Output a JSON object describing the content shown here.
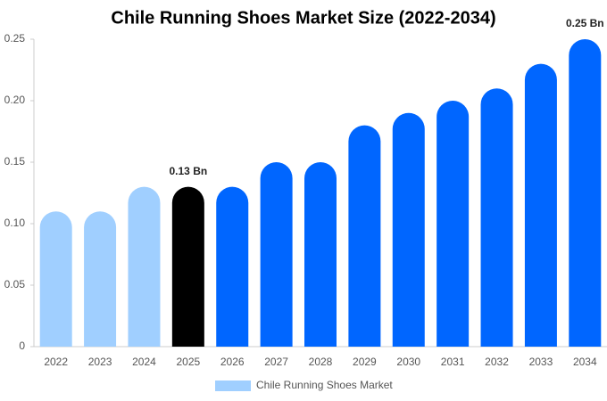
{
  "chart_data": {
    "type": "bar",
    "title": "Chile Running Shoes Market Size (2022-2034)",
    "categories": [
      "2022",
      "2023",
      "2024",
      "2025",
      "2026",
      "2027",
      "2028",
      "2029",
      "2030",
      "2031",
      "2032",
      "2033",
      "2034"
    ],
    "series": [
      {
        "name": "Chile Running Shoes Market",
        "color": "#a0cfff",
        "values": [
          0.11,
          0.11,
          0.13,
          0.13,
          0.13,
          0.15,
          0.15,
          0.18,
          0.19,
          0.2,
          0.21,
          0.23,
          0.25
        ],
        "value_labels": [
          null,
          null,
          null,
          "0.13 Bn",
          null,
          null,
          null,
          null,
          null,
          null,
          null,
          null,
          "0.25 Bn"
        ],
        "bar_colors": [
          "#a0cfff",
          "#a0cfff",
          "#a0cfff",
          "#000000",
          "#0066ff",
          "#0066ff",
          "#0066ff",
          "#0066ff",
          "#0066ff",
          "#0066ff",
          "#0066ff",
          "#0066ff",
          "#0066ff"
        ]
      }
    ],
    "ylim": [
      0,
      0.25
    ],
    "yticks": [
      0,
      0.05,
      {
        "value": 0.1,
        "label": "0.10"
      },
      0.15,
      {
        "value": 0.2,
        "label": "0.20"
      },
      0.25
    ],
    "grid": false,
    "legend": "bottom"
  }
}
